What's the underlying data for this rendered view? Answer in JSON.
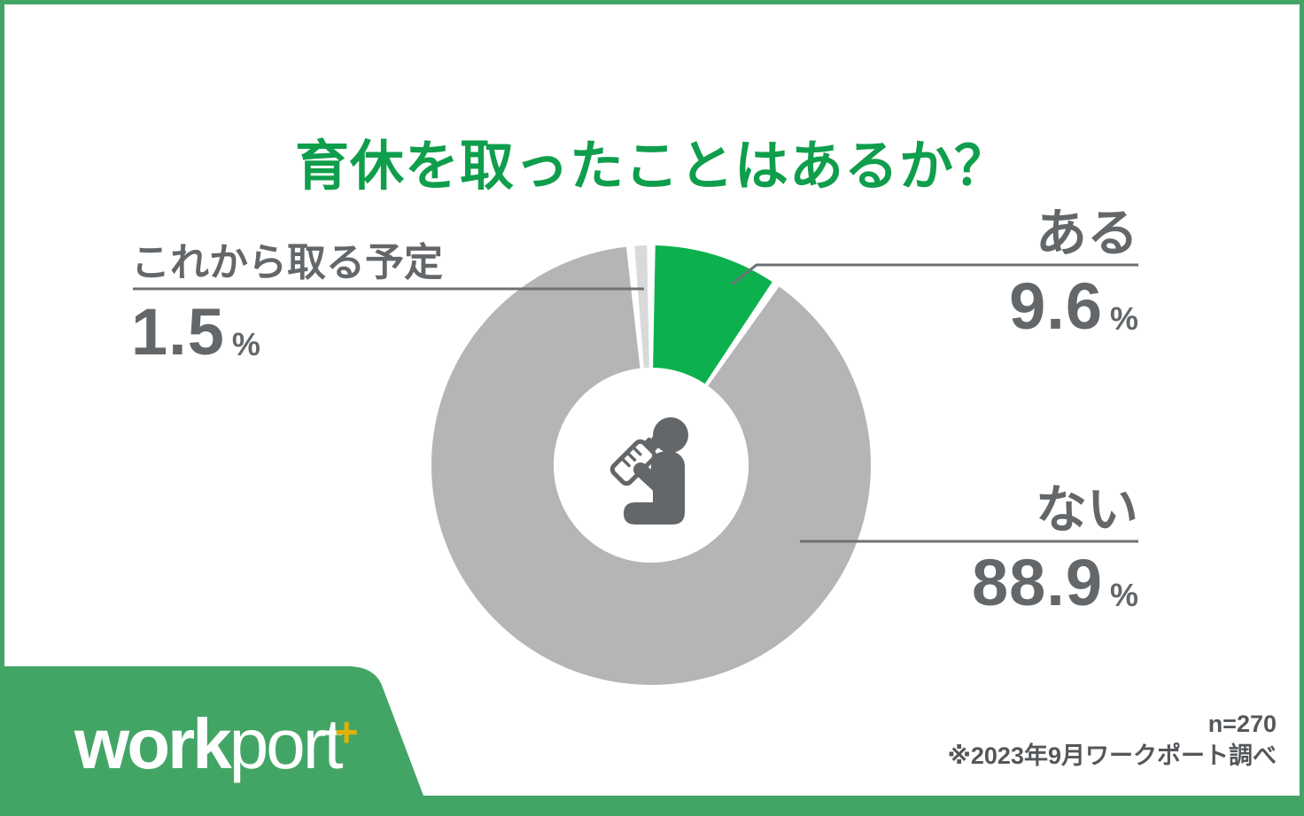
{
  "page": {
    "title": "育休を取ったことはあるか？"
  },
  "chart_data": {
    "type": "pie",
    "subtype": "donut",
    "title": "育休を取ったことはあるか？",
    "unit": "%",
    "start_angle_deg": 0,
    "direction": "clockwise",
    "segments": [
      {
        "label": "ある",
        "value": 9.6,
        "color": "#0cb14d"
      },
      {
        "label": "ない",
        "value": 88.9,
        "color": "#b5b5b5"
      },
      {
        "label": "これから取る予定",
        "value": 1.5,
        "color": "#d9d9d9"
      }
    ],
    "center_icon": "baby-drinking-bottle-icon",
    "legend_position": "callouts",
    "sample_size": "n=270",
    "source": "※2023年9月ワークポート調べ"
  },
  "footer": {
    "logo_work": "work",
    "logo_port": "por",
    "logo_t": "t",
    "logo_plus": "+",
    "sample_size": "n=270",
    "source_note": "※2023年9月ワークポート調べ"
  },
  "colors": {
    "title_green": "#0f9e4c",
    "accent_green": "#0cb14d",
    "frame_green": "#43a565",
    "donut_gray": "#b5b5b5",
    "donut_light_gray": "#d9d9d9",
    "text_gray": "#63676a",
    "line_gray": "#6d7175",
    "logo_plus_gold": "#dfb108"
  }
}
